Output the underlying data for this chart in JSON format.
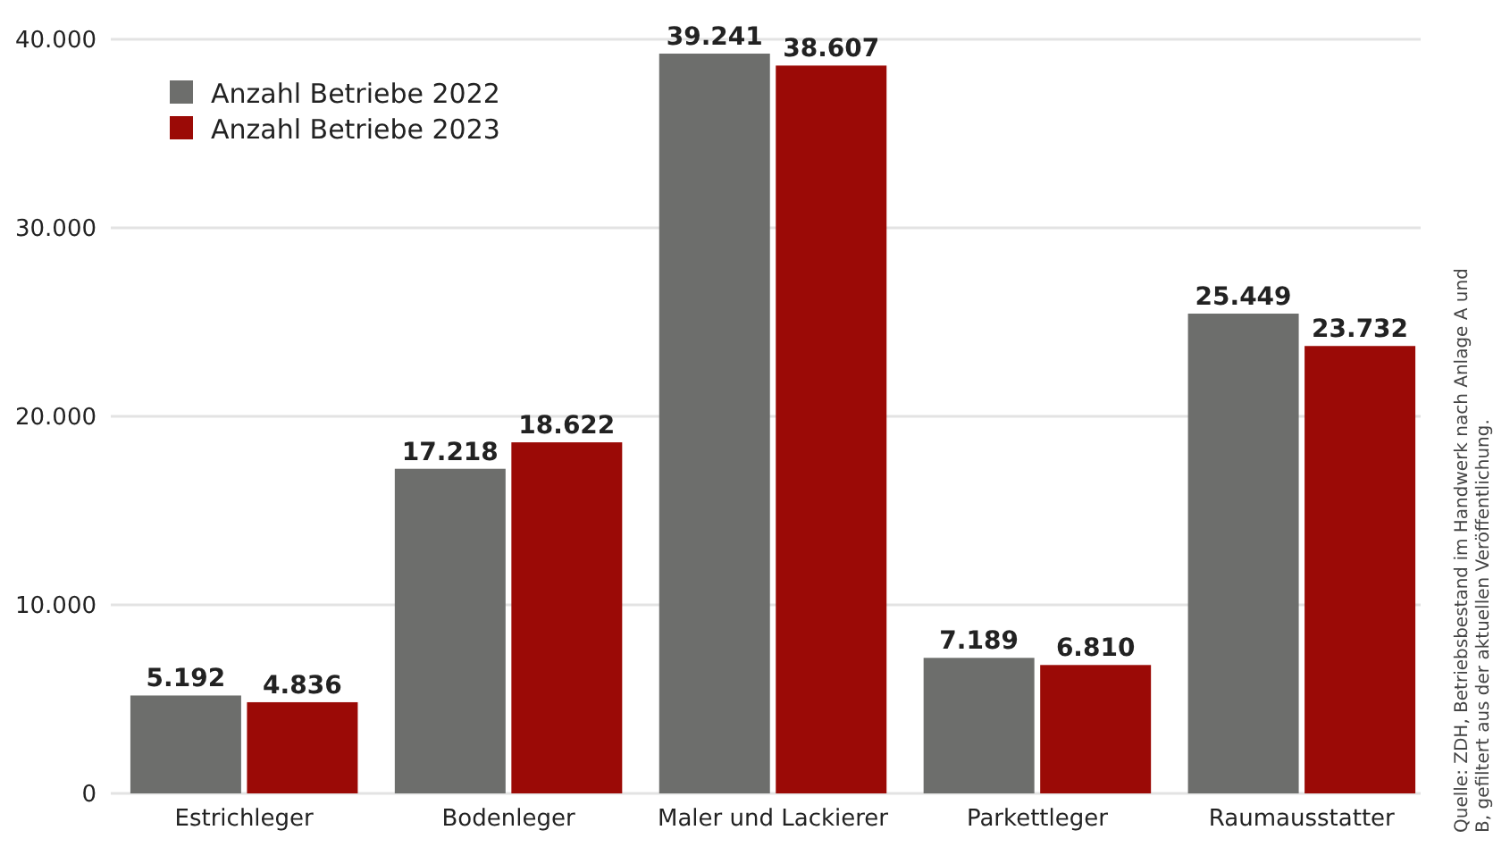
{
  "chart_data": {
    "type": "bar",
    "categories": [
      "Estrichleger",
      "Bodenleger",
      "Maler und Lackierer",
      "Parkettleger",
      "Raumausstatter"
    ],
    "series": [
      {
        "name": "Anzahl Betriebe 2022",
        "color": "#6d6e6c",
        "values": [
          5192,
          17218,
          39241,
          7189,
          25449
        ],
        "value_labels": [
          "5.192",
          "17.218",
          "39.241",
          "7.189",
          "25.449"
        ]
      },
      {
        "name": "Anzahl Betriebe 2023",
        "color": "#9b0a06",
        "values": [
          4836,
          18622,
          38607,
          6810,
          23732
        ],
        "value_labels": [
          "4.836",
          "18.622",
          "38.607",
          "6.810",
          "23.732"
        ]
      }
    ],
    "ylim": [
      0,
      40000
    ],
    "yticks": [
      {
        "value": 0,
        "label": "0"
      },
      {
        "value": 10000,
        "label": "10.000"
      },
      {
        "value": 20000,
        "label": "20.000"
      },
      {
        "value": 30000,
        "label": "30.000"
      },
      {
        "value": 40000,
        "label": "40.000"
      }
    ],
    "grid": "y",
    "legend": "top left",
    "annotations": [
      "Quelle: ZDH, Betriebsbestand im Handwerk nach Anlage A und B, gefiltert aus der aktuellen Veröffentlichung."
    ]
  }
}
